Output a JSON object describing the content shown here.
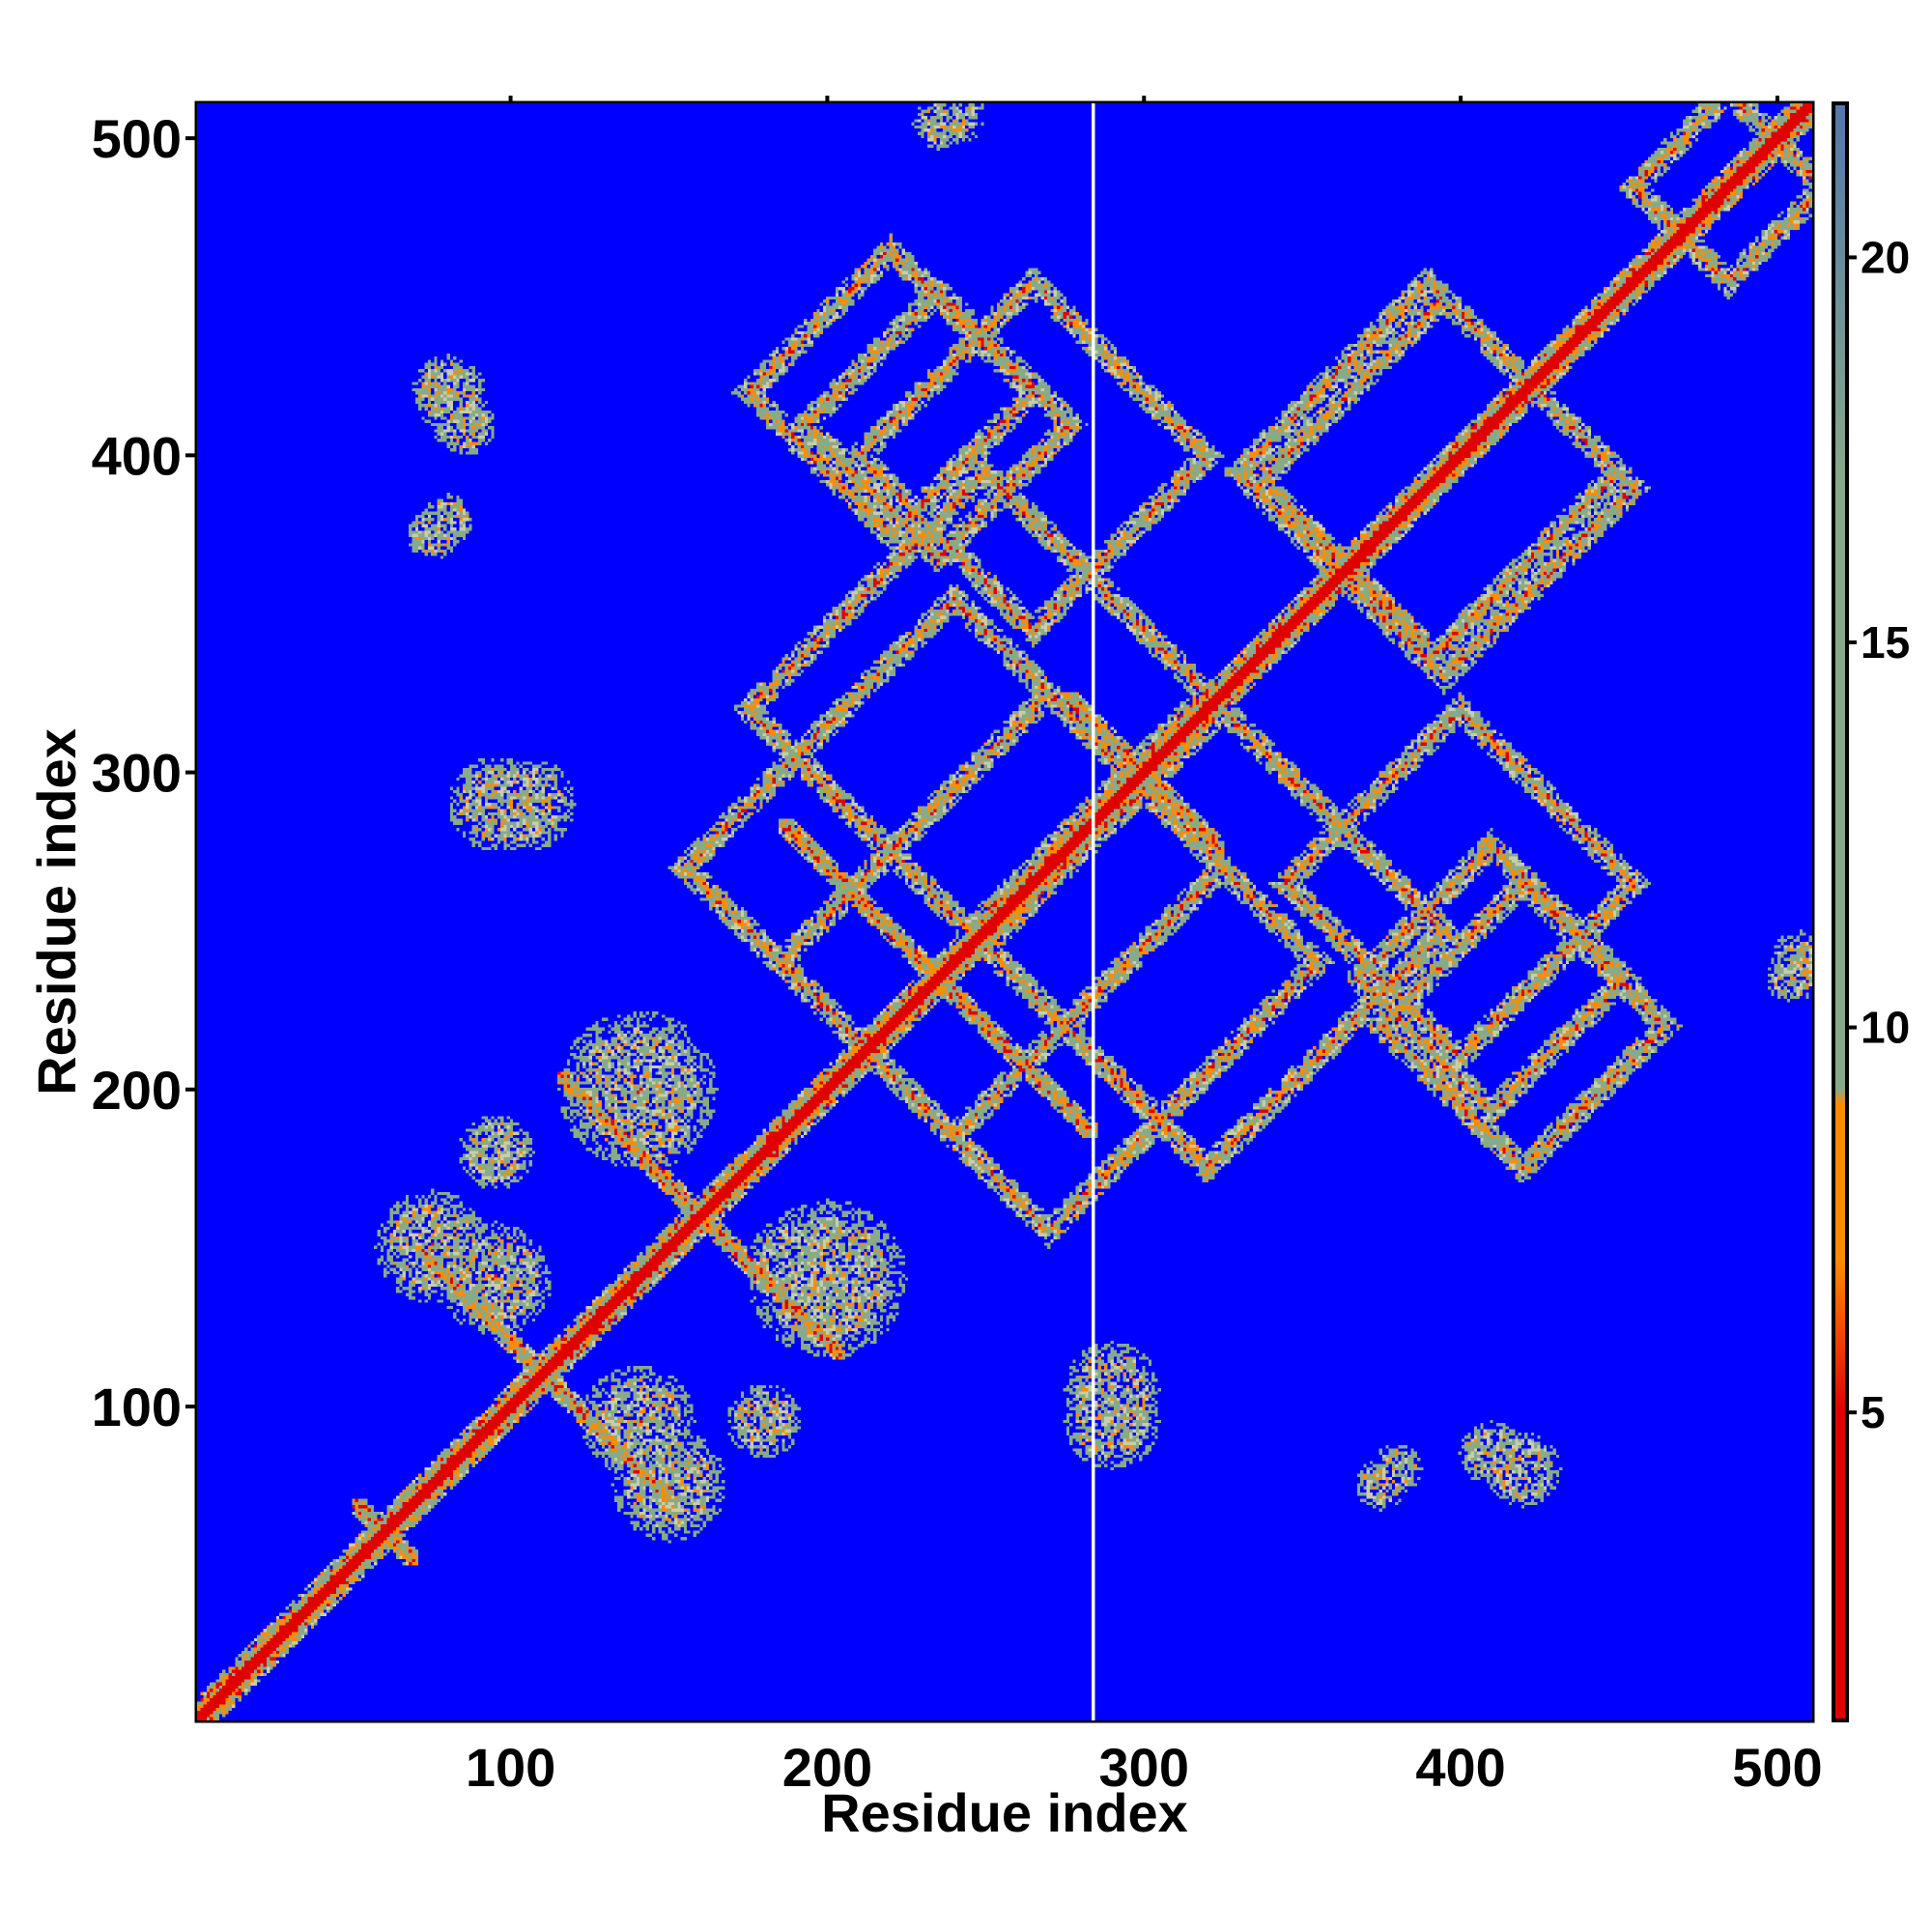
{
  "chart_data": {
    "type": "heatmap",
    "title": "",
    "xlabel": "Residue index",
    "ylabel": "Residue index",
    "xlim": [
      1,
      511
    ],
    "ylim": [
      1,
      511
    ],
    "xticks": [
      100,
      200,
      300,
      400,
      500
    ],
    "yticks": [
      100,
      200,
      300,
      400,
      500
    ],
    "colorbar": {
      "range": [
        1,
        22
      ],
      "ticks": [
        5,
        10,
        15,
        20
      ],
      "colors": {
        "low": "#e00000",
        "mid": "#ff8c00",
        "high": "#88aa88",
        "saturated": "#0000ff",
        "top": "#5577aa"
      },
      "saturation_value": 9
    },
    "grid": false,
    "gap_residue": 284,
    "diagonal": {
      "from": 1,
      "to": 511,
      "band_halfwidth": 7
    },
    "contact_features": [
      {
        "kind": "cross",
        "x": 60,
        "y": 60,
        "size": 10
      },
      {
        "kind": "cross",
        "x": 110,
        "y": 110,
        "size": 40
      },
      {
        "kind": "cross",
        "x": 160,
        "y": 160,
        "size": 45
      },
      {
        "kind": "cross",
        "x": 235,
        "y": 235,
        "size": 50
      },
      {
        "kind": "cross",
        "x": 300,
        "y": 300,
        "size": 25
      },
      {
        "kind": "cross",
        "x": 365,
        "y": 365,
        "size": 25
      },
      {
        "kind": "diamond",
        "cx": 235,
        "cy": 410,
        "half": 42
      },
      {
        "kind": "diamond",
        "cx": 395,
        "cy": 390,
        "half": 60
      },
      {
        "kind": "diamond",
        "cx": 240,
        "cy": 270,
        "half": 85
      },
      {
        "kind": "diamond",
        "cx": 320,
        "cy": 250,
        "half": 75
      },
      {
        "kind": "diamond",
        "cx": 400,
        "cy": 265,
        "half": 55
      },
      {
        "kind": "diamond",
        "cx": 420,
        "cy": 220,
        "half": 45
      },
      {
        "kind": "diamond",
        "cx": 485,
        "cy": 485,
        "half": 30
      },
      {
        "kind": "blob",
        "x": 95,
        "y": 290,
        "r": 15
      },
      {
        "kind": "blob",
        "x": 85,
        "y": 410,
        "r": 10
      },
      {
        "kind": "blob",
        "x": 75,
        "y": 375,
        "r": 8
      },
      {
        "kind": "blob",
        "x": 290,
        "y": 105,
        "r": 15
      },
      {
        "kind": "blob",
        "x": 420,
        "y": 80,
        "r": 12
      },
      {
        "kind": "blob",
        "x": 380,
        "y": 80,
        "r": 8
      },
      {
        "kind": "blob",
        "x": 240,
        "y": 508,
        "r": 10
      },
      {
        "kind": "blob",
        "x": 505,
        "y": 235,
        "r": 8
      },
      {
        "kind": "blob",
        "x": 200,
        "y": 140,
        "r": 25
      },
      {
        "kind": "blob",
        "x": 140,
        "y": 95,
        "r": 18
      },
      {
        "kind": "blob",
        "x": 75,
        "y": 150,
        "r": 18
      },
      {
        "kind": "blob",
        "x": 145,
        "y": 190,
        "r": 15
      },
      {
        "kind": "blob",
        "x": 180,
        "y": 95,
        "r": 12
      }
    ]
  }
}
